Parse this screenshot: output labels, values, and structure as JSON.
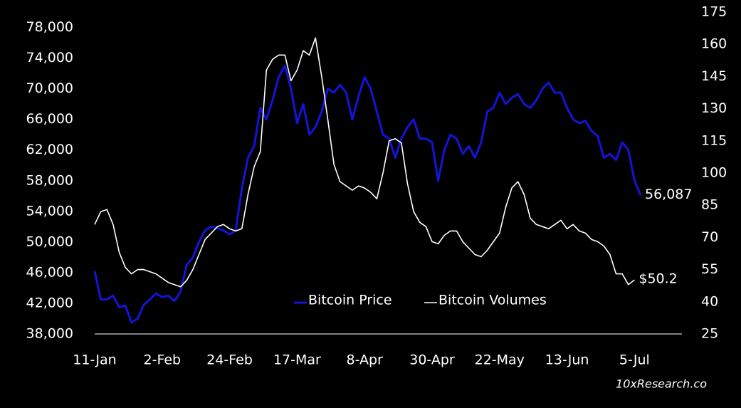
{
  "chart_data": {
    "type": "line",
    "categories": [
      "11-Jan",
      null,
      null,
      null,
      null,
      null,
      null,
      null,
      null,
      null,
      null,
      "2-Feb",
      null,
      null,
      null,
      null,
      null,
      null,
      null,
      null,
      null,
      null,
      "24-Feb",
      null,
      null,
      null,
      null,
      null,
      null,
      null,
      null,
      null,
      null,
      "17-Mar",
      null,
      null,
      null,
      null,
      null,
      null,
      null,
      null,
      null,
      null,
      "8-Apr",
      null,
      null,
      null,
      null,
      null,
      null,
      null,
      null,
      null,
      null,
      "30-Apr",
      null,
      null,
      null,
      null,
      null,
      null,
      null,
      null,
      null,
      null,
      "22-May",
      null,
      null,
      null,
      null,
      null,
      null,
      null,
      null,
      null,
      null,
      "13-Jun",
      null,
      null,
      null,
      null,
      null,
      null,
      null,
      null,
      null,
      null,
      "5-Jul",
      null
    ],
    "series": [
      {
        "name": "Bitcoin Price",
        "color": "#1414d8",
        "values": [
          46200,
          42500,
          42500,
          43000,
          41500,
          41700,
          39500,
          40000,
          41800,
          42500,
          43300,
          42800,
          43000,
          42300,
          43500,
          47000,
          48000,
          50000,
          51500,
          52000,
          51800,
          51500,
          51000,
          51500,
          57000,
          61000,
          62500,
          67500,
          66000,
          68500,
          71500,
          73000,
          70000,
          65500,
          68000,
          64000,
          65000,
          67000,
          70000,
          69500,
          70500,
          69500,
          66000,
          69000,
          71500,
          70000,
          67000,
          64000,
          63500,
          61000,
          63500,
          65000,
          66000,
          63500,
          63500,
          63000,
          58000,
          62000,
          64000,
          63500,
          61500,
          62500,
          61000,
          63000,
          67000,
          67500,
          69500,
          68000,
          68800,
          69300,
          68000,
          67500,
          68500,
          70000,
          70800,
          69500,
          69500,
          67500,
          66000,
          65500,
          65800,
          64500,
          63800,
          61000,
          61500,
          60700,
          63000,
          62000,
          58000,
          56087
        ],
        "value_labels": [
          null,
          null,
          null,
          null,
          null,
          null,
          null,
          null,
          null,
          null,
          null,
          null,
          null,
          null,
          null,
          null,
          null,
          null,
          null,
          null,
          null,
          null,
          null,
          null,
          null,
          null,
          null,
          null,
          null,
          null,
          null,
          null,
          null,
          null,
          null,
          null,
          null,
          null,
          null,
          null,
          null,
          null,
          null,
          null,
          null,
          null,
          null,
          null,
          null,
          null,
          null,
          null,
          null,
          null,
          null,
          null,
          null,
          null,
          null,
          null,
          null,
          null,
          null,
          null,
          null,
          null,
          null,
          null,
          null,
          null,
          null,
          null,
          null,
          null,
          null,
          null,
          null,
          null,
          null,
          null,
          null,
          null,
          null,
          null,
          null,
          null,
          null,
          null,
          null,
          "56,087"
        ]
      },
      {
        "name": "Bitcoin Volumes",
        "color": "#ffffff",
        "axis": "y2",
        "values": [
          76,
          82,
          83,
          76,
          63,
          56,
          53,
          55,
          55,
          54,
          53,
          51,
          49,
          48,
          47,
          50,
          55,
          62,
          69,
          72,
          75,
          76,
          74,
          73,
          74,
          90,
          103,
          110,
          148,
          153,
          155,
          155,
          143,
          148,
          157,
          155,
          163,
          145,
          125,
          104,
          96,
          94,
          92,
          94,
          93,
          91,
          88,
          100,
          115,
          116,
          114,
          95,
          82,
          77,
          75,
          68,
          67,
          71,
          73,
          73,
          68,
          65,
          62,
          61,
          64,
          68,
          72,
          84,
          93,
          96,
          90,
          79,
          76,
          75,
          74,
          76,
          78,
          74,
          76,
          73,
          72,
          69,
          68,
          66,
          62,
          53,
          53,
          48,
          50.2,
          null
        ],
        "value_labels": [
          null,
          null,
          null,
          null,
          null,
          null,
          null,
          null,
          null,
          null,
          null,
          null,
          null,
          null,
          null,
          null,
          null,
          null,
          null,
          null,
          null,
          null,
          null,
          null,
          null,
          null,
          null,
          null,
          null,
          null,
          null,
          null,
          null,
          null,
          null,
          null,
          null,
          null,
          null,
          null,
          null,
          null,
          null,
          null,
          null,
          null,
          null,
          null,
          null,
          null,
          null,
          null,
          null,
          null,
          null,
          null,
          null,
          null,
          null,
          null,
          null,
          null,
          null,
          null,
          null,
          null,
          null,
          null,
          null,
          null,
          null,
          null,
          null,
          null,
          null,
          null,
          null,
          null,
          null,
          null,
          null,
          null,
          null,
          null,
          null,
          null,
          null,
          null,
          "$50.2",
          null
        ]
      }
    ],
    "ylim": [
      38000,
      80000
    ],
    "yticks": [
      {
        "value": 38000,
        "label": "38,000"
      },
      {
        "value": 42000,
        "label": "42,000"
      },
      {
        "value": 46000,
        "label": "46,000"
      },
      {
        "value": 50000,
        "label": "50,000"
      },
      {
        "value": 54000,
        "label": "54,000"
      },
      {
        "value": 58000,
        "label": "58,000"
      },
      {
        "value": 62000,
        "label": "62,000"
      },
      {
        "value": 66000,
        "label": "66,000"
      },
      {
        "value": 70000,
        "label": "70,000"
      },
      {
        "value": 74000,
        "label": "74,000"
      },
      {
        "value": 78000,
        "label": "78,000"
      }
    ],
    "y2lim": [
      25,
      175
    ],
    "y2ticks": [
      25,
      40,
      55,
      70,
      85,
      100,
      115,
      130,
      145,
      160,
      175
    ],
    "legend": "center",
    "source": "10xResearch.co"
  }
}
